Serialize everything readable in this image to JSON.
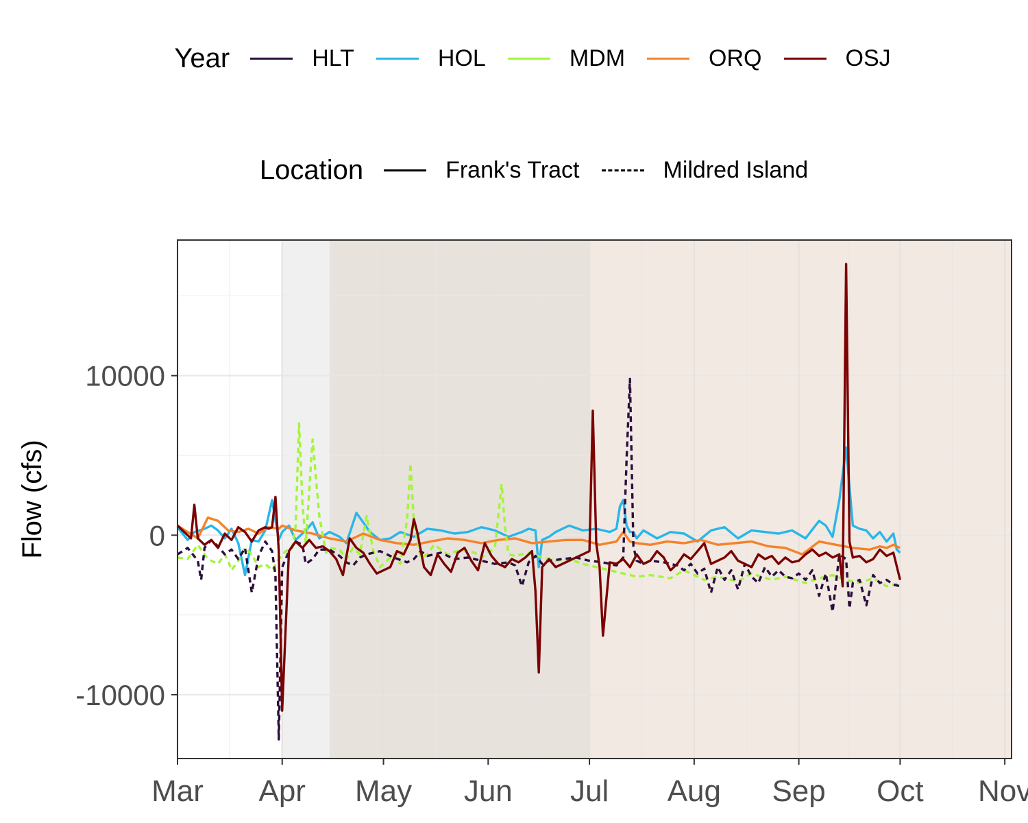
{
  "chart_data": {
    "type": "line",
    "ylabel": "Flow (cfs)",
    "xlabel": "",
    "x_ticks": [
      "Mar",
      "Apr",
      "May",
      "Jun",
      "Jul",
      "Aug",
      "Sep",
      "Oct",
      "Nov"
    ],
    "x_tick_days": [
      0,
      31,
      61,
      92,
      122,
      153,
      184,
      214,
      245
    ],
    "xlim_days": [
      0,
      247
    ],
    "y_ticks": [
      10000,
      0,
      -10000
    ],
    "y_minor": [
      15000,
      5000,
      -5000
    ],
    "ylim": [
      -14000,
      18500
    ],
    "grid": true,
    "shaded_periods": [
      {
        "from": 31,
        "to": 45,
        "color": "#f0f0f0"
      },
      {
        "from": 45,
        "to": 122,
        "color": "#e8e2dc"
      },
      {
        "from": 122,
        "to": 247,
        "color": "#f2e9e3"
      }
    ],
    "legend_year": {
      "title": "Year",
      "entries": [
        {
          "label": "HLT",
          "color": "#2b0f3d"
        },
        {
          "label": "HOL",
          "color": "#29b6e8"
        },
        {
          "label": "MDM",
          "color": "#a3f53a"
        },
        {
          "label": "ORQ",
          "color": "#f5822a"
        },
        {
          "label": "OSJ",
          "color": "#7a0203"
        }
      ]
    },
    "legend_location": {
      "title": "Location",
      "entries": [
        {
          "label": "Frank's Tract",
          "dash": "solid"
        },
        {
          "label": "Mildred Island",
          "dash": "dashed"
        }
      ]
    },
    "series": [
      {
        "name": "HOL",
        "location": "Frank's Tract",
        "color": "#29b6e8",
        "dash": "solid",
        "x": [
          0,
          3,
          5,
          8,
          10,
          12,
          14,
          16,
          18,
          20,
          22,
          24,
          26,
          28,
          30,
          31,
          33,
          35,
          38,
          40,
          42,
          45,
          48,
          50,
          53,
          55,
          57,
          60,
          63,
          66,
          70,
          74,
          78,
          82,
          86,
          90,
          94,
          98,
          102,
          104,
          106,
          107,
          108,
          110,
          112,
          116,
          120,
          124,
          128,
          130,
          131,
          132,
          133,
          134,
          135,
          136,
          138,
          142,
          146,
          150,
          154,
          158,
          162,
          166,
          170,
          174,
          178,
          182,
          186,
          190,
          192,
          194,
          196,
          198,
          200,
          202,
          204,
          206,
          208,
          210,
          212,
          213,
          214
        ],
        "y": [
          500,
          -300,
          200,
          400,
          600,
          300,
          -200,
          400,
          -500,
          -2500,
          -300,
          -400,
          300,
          2200,
          -300,
          200,
          600,
          -300,
          300,
          800,
          -200,
          200,
          -100,
          -500,
          1400,
          800,
          200,
          -300,
          -200,
          200,
          -100,
          400,
          300,
          100,
          200,
          500,
          300,
          -100,
          200,
          400,
          300,
          -2000,
          -300,
          -100,
          200,
          600,
          300,
          400,
          200,
          400,
          1800,
          2200,
          600,
          200,
          200,
          -200,
          300,
          -200,
          200,
          100,
          -400,
          300,
          500,
          -200,
          300,
          200,
          100,
          300,
          -200,
          900,
          600,
          -100,
          2200,
          5500,
          600,
          400,
          300,
          -200,
          200,
          -400,
          100,
          -900,
          -1100
        ]
      },
      {
        "name": "ORQ",
        "location": "Frank's Tract",
        "color": "#f5822a",
        "dash": "solid",
        "x": [
          0,
          3,
          6,
          9,
          12,
          15,
          18,
          21,
          24,
          27,
          30,
          31,
          35,
          40,
          45,
          50,
          55,
          60,
          65,
          70,
          75,
          80,
          85,
          90,
          95,
          100,
          105,
          110,
          115,
          120,
          125,
          130,
          132,
          134,
          136,
          140,
          145,
          150,
          155,
          160,
          165,
          170,
          175,
          180,
          185,
          190,
          195,
          200,
          205,
          208,
          210,
          212,
          214
        ],
        "y": [
          600,
          200,
          -200,
          1100,
          900,
          300,
          200,
          400,
          100,
          500,
          400,
          600,
          300,
          100,
          -200,
          -400,
          100,
          -300,
          -500,
          -600,
          -400,
          -200,
          -300,
          -500,
          -300,
          -200,
          -500,
          -400,
          -300,
          -300,
          -600,
          -400,
          200,
          -400,
          -500,
          -600,
          -400,
          -500,
          -300,
          -600,
          -500,
          -400,
          -700,
          -800,
          -1200,
          -400,
          -600,
          -800,
          -900,
          -700,
          -800,
          -600,
          -800
        ]
      },
      {
        "name": "MDM",
        "location": "Mildred Island",
        "color": "#a3f53a",
        "dash": "dashed",
        "x": [
          0,
          3,
          6,
          9,
          12,
          14,
          15,
          16,
          18,
          20,
          22,
          24,
          26,
          28,
          30,
          32,
          34,
          35,
          36,
          37,
          38,
          40,
          42,
          44,
          45,
          48,
          50,
          52,
          54,
          56,
          58,
          60,
          62,
          64,
          66,
          68,
          69,
          70,
          72,
          74,
          76,
          80,
          84,
          88,
          90,
          94,
          96,
          97,
          98,
          100,
          104,
          108,
          112,
          116,
          120,
          124,
          128,
          132,
          136,
          140,
          146,
          150,
          156,
          160,
          166,
          170,
          176,
          180,
          186,
          190,
          194,
          198,
          202,
          206,
          210,
          214
        ],
        "y": [
          -1400,
          -1500,
          -600,
          -1500,
          -1800,
          -1200,
          -1600,
          -2200,
          -1600,
          -800,
          -1200,
          -2000,
          -1800,
          -2200,
          -1500,
          -1000,
          -800,
          600,
          7000,
          2000,
          -500,
          6000,
          1200,
          -1100,
          -800,
          -900,
          -1500,
          -800,
          -1200,
          1200,
          -1000,
          -2000,
          -1600,
          -1200,
          -1800,
          1000,
          4500,
          800,
          -1400,
          -1200,
          -600,
          -1200,
          -900,
          -1100,
          -1400,
          -800,
          3200,
          500,
          -1200,
          -1300,
          -1100,
          -1400,
          -1600,
          -1500,
          -1800,
          -2000,
          -2200,
          -2400,
          -2600,
          -2500,
          -2700,
          -2200,
          -2800,
          -2600,
          -2900,
          -2400,
          -2800,
          -2600,
          -3000,
          -2700,
          -2500,
          -2800,
          -3000,
          -2700,
          -3200,
          -3000
        ]
      },
      {
        "name": "HLT",
        "location": "Mildred Island",
        "color": "#2b0f3d",
        "dash": "dashed",
        "x": [
          0,
          3,
          6,
          7,
          8,
          10,
          12,
          14,
          16,
          18,
          20,
          22,
          24,
          26,
          28,
          29,
          30,
          31,
          33,
          35,
          37,
          38,
          40,
          42,
          45,
          48,
          50,
          52,
          54,
          56,
          60,
          64,
          68,
          70,
          72,
          74,
          78,
          82,
          86,
          90,
          94,
          98,
          100,
          102,
          104,
          106,
          108,
          110,
          114,
          118,
          122,
          126,
          128,
          130,
          132,
          133,
          134,
          135,
          136,
          138,
          140,
          144,
          148,
          150,
          152,
          154,
          156,
          158,
          160,
          162,
          164,
          166,
          168,
          170,
          172,
          174,
          176,
          178,
          180,
          182,
          184,
          186,
          188,
          190,
          192,
          194,
          196,
          198,
          199,
          200,
          202,
          204,
          206,
          208,
          210,
          212,
          214
        ],
        "y": [
          -1200,
          -800,
          -1600,
          -2800,
          -800,
          -300,
          -700,
          -1200,
          -900,
          -1500,
          -800,
          -3600,
          -1300,
          -400,
          -1000,
          -2500,
          -12800,
          -2000,
          -1000,
          -400,
          -600,
          -1800,
          -1500,
          -900,
          -900,
          -1300,
          -1700,
          -1900,
          -1400,
          -1200,
          -1000,
          -1400,
          -1700,
          -1500,
          -1000,
          -1300,
          -1100,
          -1500,
          -1400,
          -1600,
          -1800,
          -1700,
          -1900,
          -3200,
          -1700,
          -1300,
          -1800,
          -1600,
          -1500,
          -1400,
          -1600,
          -1700,
          -1800,
          -1900,
          -1400,
          4800,
          9800,
          -700,
          -1600,
          -1800,
          -1600,
          -1700,
          -1900,
          -2200,
          -1800,
          -2400,
          -2100,
          -3600,
          -2000,
          -2800,
          -2200,
          -3400,
          -1800,
          -2600,
          -3000,
          -2000,
          -2600,
          -2200,
          -2600,
          -2700,
          -2400,
          -2800,
          -2200,
          -3800,
          -2400,
          -4800,
          -1200,
          -1500,
          -4600,
          -3000,
          -2800,
          -4400,
          -2500,
          -3000,
          -2800,
          -3100,
          -3200
        ]
      },
      {
        "name": "OSJ",
        "location": "Frank's Tract",
        "color": "#7a0203",
        "dash": "solid",
        "x": [
          0,
          2,
          4,
          5,
          6,
          8,
          10,
          12,
          14,
          16,
          18,
          20,
          22,
          24,
          26,
          27,
          28,
          29,
          30,
          31,
          33,
          35,
          37,
          39,
          41,
          43,
          45,
          47,
          49,
          51,
          53,
          55,
          57,
          59,
          61,
          63,
          65,
          67,
          69,
          70,
          71,
          73,
          75,
          77,
          79,
          81,
          83,
          85,
          87,
          89,
          91,
          93,
          95,
          97,
          99,
          101,
          103,
          105,
          106,
          107,
          108,
          110,
          112,
          114,
          116,
          118,
          120,
          122,
          123,
          124,
          125,
          126,
          128,
          130,
          132,
          134,
          136,
          138,
          140,
          142,
          144,
          146,
          148,
          150,
          152,
          154,
          156,
          158,
          160,
          162,
          164,
          166,
          168,
          170,
          172,
          174,
          176,
          178,
          180,
          182,
          184,
          186,
          188,
          190,
          192,
          194,
          196,
          197,
          198,
          199,
          200,
          202,
          204,
          206,
          208,
          210,
          212,
          214
        ],
        "y": [
          600,
          200,
          -200,
          1900,
          -200,
          -600,
          -300,
          -800,
          100,
          -300,
          500,
          200,
          -400,
          300,
          500,
          400,
          500,
          2400,
          -1000,
          -11000,
          -1000,
          -400,
          -800,
          -300,
          -800,
          -700,
          -1000,
          -1500,
          -2500,
          -200,
          -800,
          -1100,
          -1800,
          -2400,
          -2200,
          -2000,
          -1000,
          -1200,
          -300,
          1000,
          200,
          -2000,
          -2500,
          -1200,
          -1800,
          -2300,
          -1100,
          -800,
          -1600,
          -2200,
          -500,
          -1300,
          -1800,
          -2000,
          -1500,
          -1700,
          -1400,
          -1000,
          -3500,
          -8600,
          -2000,
          -1500,
          -2000,
          -1800,
          -1600,
          -1400,
          -1200,
          -1000,
          7800,
          -500,
          -2000,
          -6300,
          -1700,
          -1800,
          -1500,
          -2000,
          -1200,
          -1800,
          -1600,
          -1000,
          -1400,
          -2200,
          -1800,
          -1200,
          -1500,
          -1000,
          -500,
          -1800,
          -1600,
          -1400,
          -1000,
          -1600,
          -1800,
          -2000,
          -1200,
          -1500,
          -1300,
          -1800,
          -1400,
          -1700,
          -1600,
          -1200,
          -900,
          -1300,
          -1100,
          -1400,
          -1200,
          -3200,
          17000,
          -400,
          -1400,
          -1300,
          -1700,
          -1500,
          -900,
          -1300,
          -1100,
          -2800
        ]
      }
    ]
  }
}
